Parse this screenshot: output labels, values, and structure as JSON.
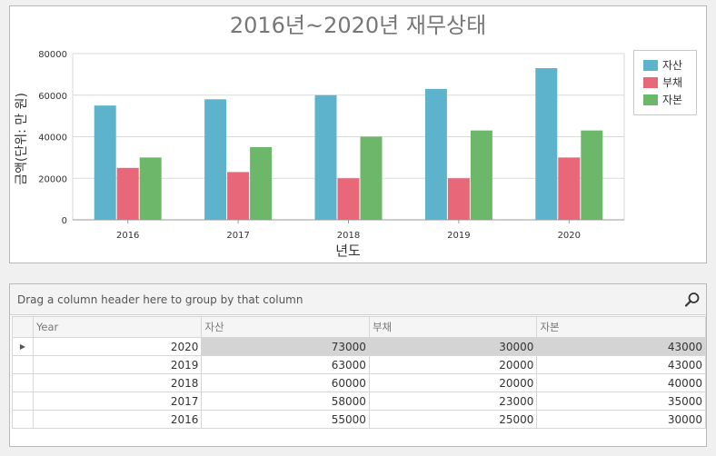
{
  "chart_data": {
    "type": "bar",
    "title": "2016년~2020년 재무상태",
    "xlabel": "년도",
    "ylabel": "금액(단위: 만 원)",
    "categories": [
      "2016",
      "2017",
      "2018",
      "2019",
      "2020"
    ],
    "series": [
      {
        "name": "자산",
        "values": [
          55000,
          58000,
          60000,
          63000,
          73000
        ],
        "color": "#5eb3cc"
      },
      {
        "name": "부채",
        "values": [
          25000,
          23000,
          20000,
          20000,
          30000
        ],
        "color": "#e8687a"
      },
      {
        "name": "자본",
        "values": [
          30000,
          35000,
          40000,
          43000,
          43000
        ],
        "color": "#6db76b"
      }
    ],
    "ylim": [
      0,
      80000
    ],
    "yticks": [
      "0",
      "20000",
      "40000",
      "60000",
      "80000"
    ],
    "grid": true,
    "legend_position": "right"
  },
  "grid": {
    "group_hint": "Drag a column header here to group by that column",
    "columns": [
      "Year",
      "자산",
      "부채",
      "자본"
    ],
    "rows": [
      {
        "year": "2020",
        "asset": "73000",
        "debt": "30000",
        "equity": "43000"
      },
      {
        "year": "2019",
        "asset": "63000",
        "debt": "20000",
        "equity": "43000"
      },
      {
        "year": "2018",
        "asset": "60000",
        "debt": "20000",
        "equity": "40000"
      },
      {
        "year": "2017",
        "asset": "58000",
        "debt": "23000",
        "equity": "35000"
      },
      {
        "year": "2016",
        "asset": "55000",
        "debt": "25000",
        "equity": "30000"
      }
    ],
    "focused_row_indicator": "▶"
  }
}
